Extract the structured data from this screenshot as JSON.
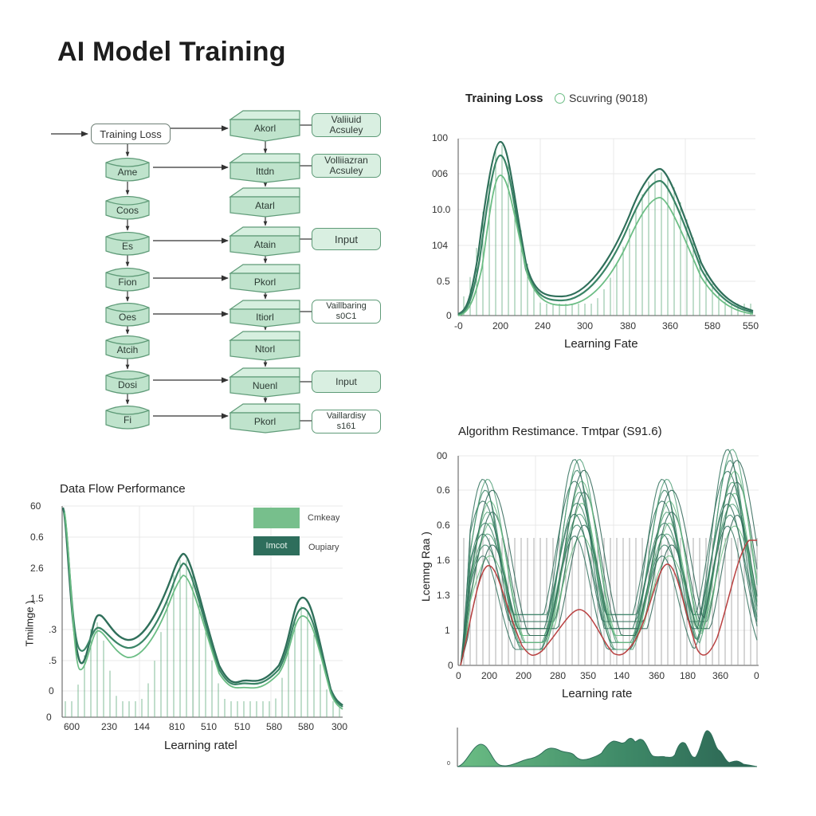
{
  "page": {
    "title": "AI Model Training"
  },
  "flow_diagram": {
    "start_node": "Training Loss",
    "left_nodes": [
      "Ame",
      "Coos",
      "Es",
      "Fion",
      "Oes",
      "Atcih",
      "Dosi",
      "Fi"
    ],
    "center_nodes": [
      "Akorl",
      "Ittdn",
      "Atarl",
      "Atain",
      "Pkorl",
      "Itiorl",
      "Ntorl",
      "Nuenl",
      "Pkorl"
    ],
    "side_nodes": [
      {
        "line1": "Valiiuid",
        "line2": "Acsuley",
        "style": "green"
      },
      {
        "line1": "Volliiazran",
        "line2": "Acsuley",
        "style": "green"
      },
      {
        "line1": "Input",
        "line2": "",
        "style": "green"
      },
      {
        "line1": "Vaillbaring",
        "line2": "s0C1",
        "style": "white"
      },
      {
        "line1": "Input",
        "line2": "",
        "style": "green"
      },
      {
        "line1": "Vaillardisy",
        "line2": "s161",
        "style": "white"
      }
    ]
  },
  "colors": {
    "node_fill": "#bfe3cc",
    "node_top": "#d6efdf",
    "node_stroke": "#5f9b78",
    "dark_green": "#2f6f5a",
    "mid_green": "#3f8a68",
    "light_green": "#6bbd84",
    "red_curve": "#b94040",
    "grid": "#e6e6e6"
  },
  "chart_data": [
    {
      "type": "line",
      "id": "training-loss",
      "title": "Training Loss",
      "legend": [
        {
          "marker": "circle-outline",
          "label": "Scuvring (9018)"
        }
      ],
      "xlabel": "Learning Fate",
      "ylabel": "",
      "x_ticks": [
        "-0",
        "200",
        "240",
        "300",
        "380",
        "360",
        "580",
        "550"
      ],
      "y_ticks": [
        "0",
        "0.5",
        "104",
        "10.0",
        "006",
        "100"
      ],
      "grid": true,
      "series": [
        {
          "name": "curve-1 (dark)",
          "x": [
            0,
            0.1,
            0.2,
            0.35,
            0.5,
            0.72,
            0.85,
            1.0
          ],
          "values": [
            0.02,
            0.55,
            1.0,
            0.12,
            0.3,
            0.82,
            0.4,
            0.06
          ]
        },
        {
          "name": "curve-2 (mid)",
          "x": [
            0,
            0.1,
            0.2,
            0.35,
            0.5,
            0.72,
            0.85,
            1.0
          ],
          "values": [
            0.02,
            0.5,
            0.9,
            0.1,
            0.26,
            0.75,
            0.36,
            0.05
          ]
        },
        {
          "name": "curve-3 (light)",
          "x": [
            0,
            0.1,
            0.2,
            0.35,
            0.5,
            0.72,
            0.85,
            1.0
          ],
          "values": [
            0.01,
            0.42,
            0.78,
            0.06,
            0.2,
            0.66,
            0.3,
            0.04
          ]
        }
      ],
      "ylim": [
        0,
        1
      ]
    },
    {
      "type": "line",
      "id": "data-flow-performance",
      "title": "Data Flow Performance",
      "legend": [
        {
          "label": "Cmkeay",
          "swatch_text": "",
          "color": "#77bf8c"
        },
        {
          "label": "Oupiary",
          "swatch_text": "Imcot",
          "color": "#2e6e5c"
        }
      ],
      "xlabel": "Learning ratel",
      "ylabel": "Tmilmge )",
      "x_ticks": [
        "600",
        "230",
        "144",
        "810",
        "510",
        "510",
        "580",
        "580",
        "300"
      ],
      "y_ticks": [
        "0",
        "0",
        ".5",
        ".3",
        "1.5",
        "2.6",
        "0.6",
        "60"
      ],
      "grid": true,
      "series": [
        {
          "name": "upper",
          "x": [
            0,
            0.05,
            0.15,
            0.25,
            0.45,
            0.72,
            0.87,
            1.0
          ],
          "values": [
            1.0,
            0.35,
            0.5,
            0.38,
            0.76,
            0.18,
            0.58,
            0.05
          ]
        },
        {
          "name": "middle",
          "x": [
            0,
            0.05,
            0.15,
            0.25,
            0.45,
            0.72,
            0.87,
            1.0
          ],
          "values": [
            0.98,
            0.3,
            0.45,
            0.34,
            0.72,
            0.16,
            0.54,
            0.04
          ]
        },
        {
          "name": "lower",
          "x": [
            0,
            0.05,
            0.15,
            0.25,
            0.45,
            0.72,
            0.87,
            1.0
          ],
          "values": [
            0.95,
            0.25,
            0.43,
            0.3,
            0.68,
            0.13,
            0.5,
            0.03
          ]
        }
      ],
      "ylim": [
        0,
        1
      ]
    },
    {
      "type": "line",
      "id": "algorithm-performance",
      "title": "Algorithm Restimance. Tmtpar (S91.6)",
      "xlabel": "Learning rate",
      "ylabel": "Lcemng Raa )",
      "x_ticks": [
        "0",
        "200",
        "200",
        "280",
        "350",
        "140",
        "360",
        "180",
        "360",
        "0"
      ],
      "y_ticks": [
        "0",
        "1",
        "1.3",
        "1.6",
        "0.6",
        "0.6",
        "00"
      ],
      "grid": true,
      "series": [
        {
          "name": "green-ensemble (approx. 15 curves)",
          "peaks_x": [
            0.12,
            0.38,
            0.66,
            0.88
          ],
          "peak_range": [
            0.6,
            1.0
          ],
          "trough_range": [
            0.05,
            0.3
          ]
        },
        {
          "name": "red-curve",
          "x": [
            0,
            0.1,
            0.22,
            0.38,
            0.5,
            0.65,
            0.8,
            0.95
          ],
          "values": [
            0.0,
            0.55,
            0.05,
            0.27,
            0.05,
            0.52,
            0.05,
            0.6
          ]
        }
      ],
      "ylim": [
        0,
        1
      ]
    },
    {
      "type": "area",
      "id": "density-strip",
      "title": "",
      "x_ticks": [],
      "y_ticks": [
        "0"
      ],
      "series": [
        {
          "name": "density",
          "x": [
            0,
            0.07,
            0.14,
            0.2,
            0.27,
            0.35,
            0.42,
            0.48,
            0.53,
            0.57,
            0.63,
            0.67,
            0.72,
            0.77,
            0.82,
            0.86,
            0.92,
            1.0
          ],
          "values": [
            0.02,
            0.55,
            0.02,
            0.15,
            0.42,
            0.25,
            0.15,
            0.55,
            0.62,
            0.66,
            0.3,
            0.3,
            0.63,
            0.25,
            0.95,
            0.3,
            0.12,
            0.01
          ]
        }
      ]
    }
  ]
}
